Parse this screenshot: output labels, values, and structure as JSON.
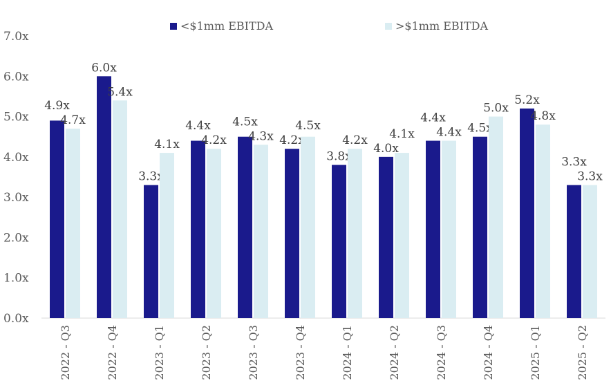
{
  "chart_data": {
    "type": "bar",
    "title": "",
    "xlabel": "",
    "ylabel": "",
    "ylim": [
      0,
      7
    ],
    "yticks": [
      "0.0x",
      "1.0x",
      "2.0x",
      "3.0x",
      "4.0x",
      "5.0x",
      "6.0x",
      "7.0x"
    ],
    "grid": false,
    "legend_position": "top",
    "categories": [
      "2022 - Q3",
      "2022 - Q4",
      "2023 - Q1",
      "2023 - Q2",
      "2023 - Q3",
      "2023 - Q4",
      "2024 - Q1",
      "2024 - Q2",
      "2024 - Q3",
      "2024 - Q4",
      "2025 - Q1",
      "2025 - Q2"
    ],
    "series": [
      {
        "name": "<$1mm EBITDA",
        "color": "#1a1a8c",
        "values": [
          4.9,
          6.0,
          3.3,
          4.4,
          4.5,
          4.2,
          3.8,
          4.0,
          4.4,
          4.5,
          5.2,
          3.3
        ]
      },
      {
        "name": ">$1mm EBITDA",
        "color": "#daedf2",
        "values": [
          4.7,
          5.4,
          4.1,
          4.2,
          4.3,
          4.5,
          4.2,
          4.1,
          4.4,
          5.0,
          4.8,
          3.3
        ]
      }
    ],
    "label_suffix": "x"
  }
}
